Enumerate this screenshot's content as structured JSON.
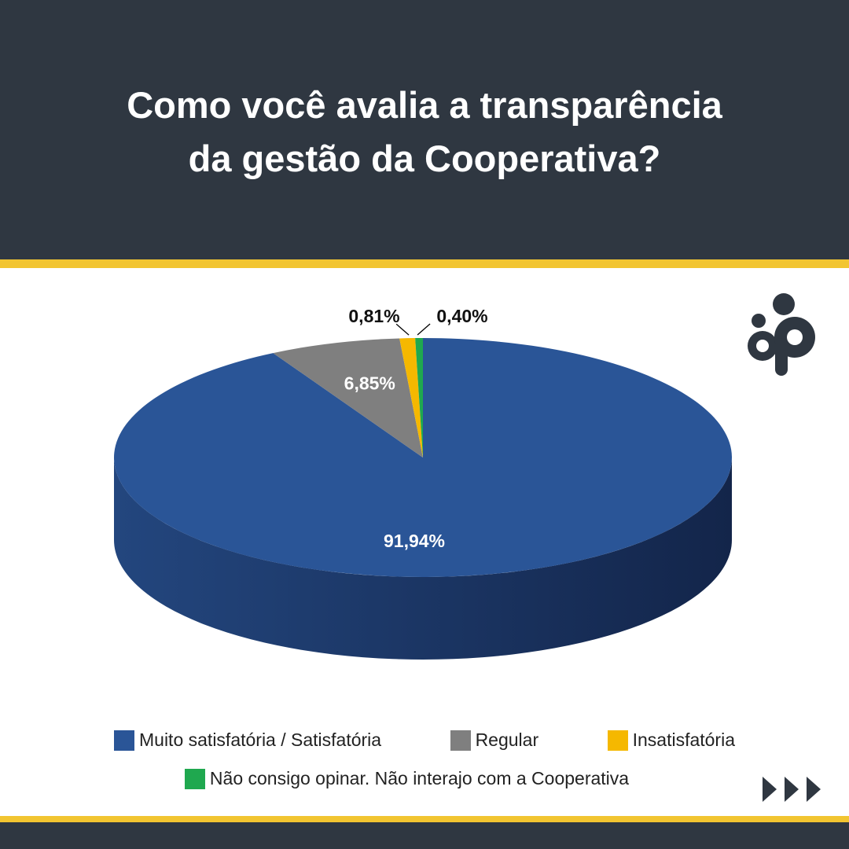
{
  "chart_data": {
    "type": "pie",
    "title": "Como você avalia a transparência da gestão da Cooperativa?",
    "categories": [
      "Muito satisfatória / Satisfatória",
      "Regular",
      "Insatisfatória",
      "Não consigo opinar. Não interajo com a Cooperativa"
    ],
    "values": [
      91.94,
      6.85,
      0.81,
      0.4
    ],
    "value_labels": [
      "91,94%",
      "6,85%",
      "0,81%",
      "0,40%"
    ],
    "colors": [
      "#2a5597",
      "#7f7f7f",
      "#f5b800",
      "#1fa84f"
    ]
  }
}
